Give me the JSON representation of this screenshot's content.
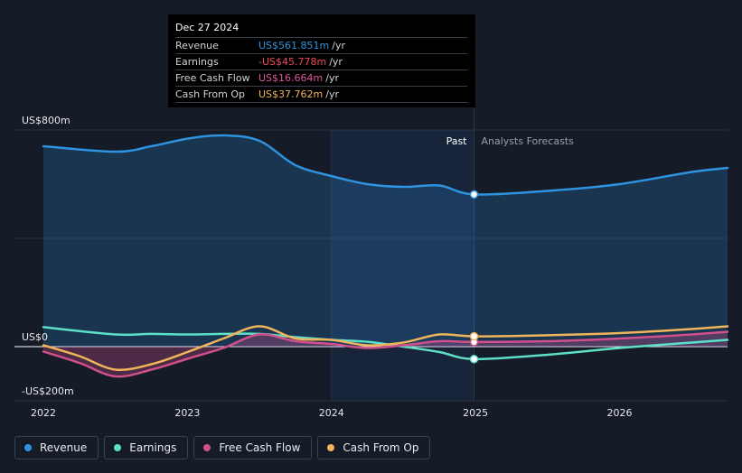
{
  "tooltip": {
    "date": "Dec 27 2024",
    "rows": [
      {
        "label": "Revenue",
        "value": "US$561.851m",
        "unit": "/yr",
        "color": "#2e93e0"
      },
      {
        "label": "Earnings",
        "value": "-US$45.778m",
        "unit": "/yr",
        "color": "#f0485a"
      },
      {
        "label": "Free Cash Flow",
        "value": "US$16.664m",
        "unit": "/yr",
        "color": "#e0549c"
      },
      {
        "label": "Cash From Op",
        "value": "US$37.762m",
        "unit": "/yr",
        "color": "#f0b45a"
      }
    ]
  },
  "labels": {
    "past": "Past",
    "forecast": "Analysts Forecasts"
  },
  "legend": [
    {
      "label": "Revenue",
      "color": "#2e93e0"
    },
    {
      "label": "Earnings",
      "color": "#5de0c8"
    },
    {
      "label": "Free Cash Flow",
      "color": "#d0508c"
    },
    {
      "label": "Cash From Op",
      "color": "#f0b45a"
    }
  ],
  "chart_data": {
    "type": "line",
    "y_tick_labels": [
      "US$800m",
      "US$0",
      "-US$200m"
    ],
    "y_ticks": [
      800,
      0,
      -200
    ],
    "ylim": [
      -200,
      800
    ],
    "xlim": [
      2022.0,
      2026.75
    ],
    "x_ticks": [
      2022,
      2023,
      2024,
      2025,
      2026
    ],
    "x_tick_labels": [
      "2022",
      "2023",
      "2024",
      "2025",
      "2026"
    ],
    "past_start": 2024.0,
    "divider_x": 2024.99,
    "series": [
      {
        "name": "Revenue",
        "color": "#2e93e0",
        "fill": true,
        "x": [
          2022.0,
          2022.5,
          2022.75,
          2023.0,
          2023.25,
          2023.5,
          2023.75,
          2024.0,
          2024.25,
          2024.5,
          2024.75,
          2024.99,
          2025.5,
          2026.0,
          2026.5,
          2026.75
        ],
        "y": [
          740,
          720,
          740,
          768,
          780,
          760,
          670,
          630,
          600,
          590,
          595,
          562,
          575,
          600,
          645,
          660
        ]
      },
      {
        "name": "Earnings",
        "color": "#5de0c8",
        "fill": false,
        "x": [
          2022.0,
          2022.5,
          2022.75,
          2023.0,
          2023.25,
          2023.5,
          2023.75,
          2024.0,
          2024.25,
          2024.5,
          2024.75,
          2024.99,
          2025.5,
          2026.0,
          2026.5,
          2026.75
        ],
        "y": [
          72,
          45,
          47,
          45,
          47,
          47,
          35,
          25,
          18,
          0,
          -20,
          -46,
          -30,
          -5,
          15,
          25
        ]
      },
      {
        "name": "Free Cash Flow",
        "color": "#d0508c",
        "fill": true,
        "x": [
          2022.0,
          2022.25,
          2022.5,
          2022.75,
          2023.0,
          2023.25,
          2023.5,
          2023.75,
          2024.0,
          2024.25,
          2024.5,
          2024.75,
          2024.99,
          2025.5,
          2026.0,
          2026.5,
          2026.75
        ],
        "y": [
          -18,
          -60,
          -110,
          -85,
          -45,
          -5,
          45,
          20,
          10,
          -5,
          5,
          20,
          17,
          20,
          30,
          45,
          55
        ]
      },
      {
        "name": "Cash From Op",
        "color": "#f0b45a",
        "fill": false,
        "x": [
          2022.0,
          2022.25,
          2022.5,
          2022.75,
          2023.0,
          2023.25,
          2023.5,
          2023.75,
          2024.0,
          2024.25,
          2024.5,
          2024.75,
          2024.99,
          2025.5,
          2026.0,
          2026.5,
          2026.75
        ],
        "y": [
          5,
          -35,
          -85,
          -65,
          -20,
          30,
          75,
          30,
          25,
          5,
          15,
          45,
          38,
          42,
          50,
          65,
          75
        ]
      }
    ],
    "markers": [
      {
        "series": "Revenue",
        "x": 2024.99,
        "y": 562,
        "color": "#2e93e0"
      },
      {
        "series": "Earnings",
        "x": 2024.99,
        "y": -46,
        "color": "#5de0c8"
      },
      {
        "series": "Free Cash Flow",
        "x": 2024.99,
        "y": 17,
        "color": "#d0508c"
      },
      {
        "series": "Cash From Op",
        "x": 2024.99,
        "y": 38,
        "color": "#f0b45a"
      }
    ]
  }
}
